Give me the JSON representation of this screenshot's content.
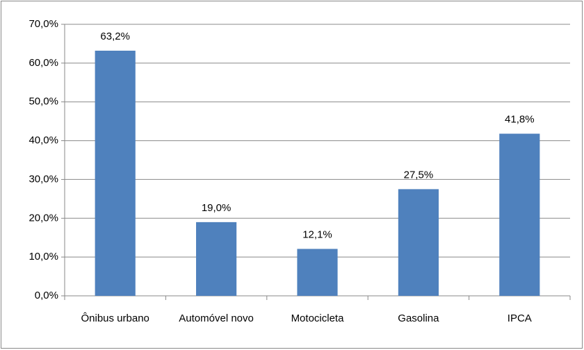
{
  "chart_data": {
    "type": "bar",
    "categories": [
      "Ônibus urbano",
      "Automóvel novo",
      "Motocicleta",
      "Gasolina",
      "IPCA"
    ],
    "values": [
      63.2,
      19.0,
      12.1,
      27.5,
      41.8
    ],
    "value_labels": [
      "63,2%",
      "19,0%",
      "12,1%",
      "27,5%",
      "41,8%"
    ],
    "color": "#4f81bd",
    "ylim": [
      0,
      70
    ],
    "yticks": [
      {
        "value": 0,
        "label": "0,0%"
      },
      {
        "value": 10,
        "label": "10,0%"
      },
      {
        "value": 20,
        "label": "20,0%"
      },
      {
        "value": 30,
        "label": "30,0%"
      },
      {
        "value": 40,
        "label": "40,0%"
      },
      {
        "value": 50,
        "label": "50,0%"
      },
      {
        "value": 60,
        "label": "60,0%"
      },
      {
        "value": 70,
        "label": "70,0%"
      }
    ],
    "grid": true
  }
}
